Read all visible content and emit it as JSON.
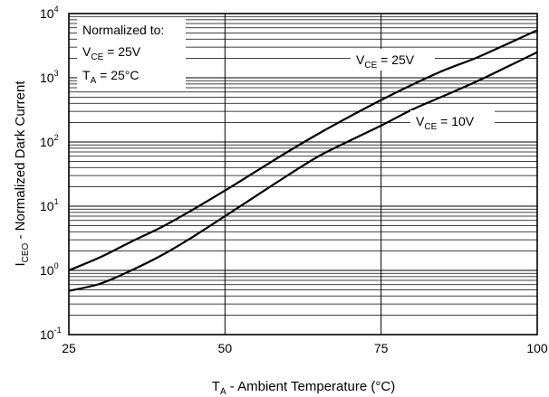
{
  "chart_data": {
    "type": "line",
    "title": "",
    "xlabel": {
      "main": "T",
      "sub": "A",
      "rest": " - Ambient Temperature (°C)"
    },
    "ylabel": {
      "main": "I",
      "sub": "CEO",
      "rest": " - Normalized Dark Current"
    },
    "xlim": [
      25,
      100
    ],
    "ylim": [
      0.1,
      10000
    ],
    "yscale": "log",
    "grid": true,
    "x_ticks": [
      {
        "value": 25,
        "label": "25"
      },
      {
        "value": 50,
        "label": "50"
      },
      {
        "value": 75,
        "label": "75"
      },
      {
        "value": 100,
        "label": "100"
      }
    ],
    "y_ticks": [
      {
        "value": 0.1,
        "base": "10",
        "exp": "-1"
      },
      {
        "value": 1,
        "base": "10",
        "exp": "0"
      },
      {
        "value": 10,
        "base": "10",
        "exp": "1"
      },
      {
        "value": 100,
        "base": "10",
        "exp": "2"
      },
      {
        "value": 1000,
        "base": "10",
        "exp": "3"
      },
      {
        "value": 10000,
        "base": "10",
        "exp": "4"
      }
    ],
    "series": [
      {
        "label": {
          "main": "V",
          "sub": "CE",
          "rest": " = 25V"
        },
        "x": [
          25,
          30,
          35,
          40,
          45,
          50,
          55,
          60,
          65,
          70,
          75,
          80,
          85,
          90,
          95,
          100
        ],
        "y": [
          1.0,
          1.6,
          2.8,
          4.8,
          9.0,
          17.5,
          35,
          70,
          135,
          250,
          450,
          780,
          1300,
          2000,
          3300,
          5500
        ]
      },
      {
        "label": {
          "main": "V",
          "sub": "CE",
          "rest": " = 10V"
        },
        "x": [
          25,
          30,
          35,
          40,
          45,
          50,
          55,
          60,
          65,
          70,
          75,
          80,
          85,
          90,
          95,
          100
        ],
        "y": [
          0.48,
          0.62,
          1.0,
          1.75,
          3.4,
          7,
          14.5,
          30,
          60,
          105,
          180,
          320,
          520,
          850,
          1450,
          2500
        ]
      }
    ],
    "legend_box": {
      "title": "Normalized to:",
      "lines": [
        {
          "main": "V",
          "sub": "CE",
          "rest": " = 25V"
        },
        {
          "main": "T",
          "sub": "A",
          "rest": " = 25°C"
        }
      ]
    }
  }
}
